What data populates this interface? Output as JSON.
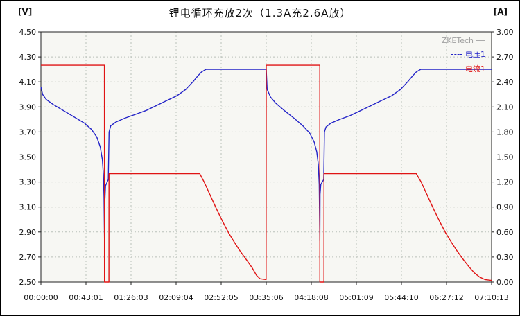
{
  "header": {
    "title": "锂电循环充放2次（1.3A充2.6A放）"
  },
  "axes": {
    "left_unit": "[V]",
    "right_unit": "[A]"
  },
  "watermark": {
    "label": "ZKETech",
    "color": "#a0a0a0"
  },
  "legend": [
    {
      "id": "voltage-1",
      "label": "电压1",
      "color": "#2323c8"
    },
    {
      "id": "current-1",
      "label": "电流1",
      "color": "#e01414"
    }
  ],
  "colors": {
    "grid": "#b9c0b9",
    "plot_bg": "#f7f7f3",
    "frame": "#222222",
    "tick_text": "#111111",
    "voltage": "#2323c8",
    "current": "#e01414"
  },
  "chart_data": {
    "type": "line",
    "title": "锂电循环充放2次（1.3A充2.6A放）",
    "x_tick_labels": [
      "00:00:00",
      "00:43:01",
      "01:26:03",
      "02:09:04",
      "02:52:05",
      "03:35:06",
      "04:18:08",
      "05:01:09",
      "05:44:10",
      "06:27:12",
      "07:10:13"
    ],
    "x_range_seconds": [
      0,
      25813
    ],
    "y_left": {
      "unit": "[V]",
      "min": 2.5,
      "max": 4.5,
      "step": 0.2,
      "decimals": 2
    },
    "y_right": {
      "unit": "[A]",
      "min": 0.0,
      "max": 3.0,
      "step": 0.3,
      "decimals": 2
    },
    "grid": true,
    "legend_position": "top-right-inside",
    "series": [
      {
        "id": "voltage-1",
        "name": "电压1",
        "axis": "left",
        "color": "#2323c8",
        "points": [
          [
            0,
            4.06
          ],
          [
            100,
            4.0
          ],
          [
            300,
            3.96
          ],
          [
            700,
            3.92
          ],
          [
            1300,
            3.87
          ],
          [
            1900,
            3.82
          ],
          [
            2500,
            3.77
          ],
          [
            2900,
            3.72
          ],
          [
            3200,
            3.66
          ],
          [
            3400,
            3.58
          ],
          [
            3520,
            3.48
          ],
          [
            3580,
            3.36
          ],
          [
            3615,
            3.18
          ],
          [
            3645,
            2.8
          ],
          [
            3660,
            3.15
          ],
          [
            3700,
            3.27
          ],
          [
            3860,
            3.32
          ],
          [
            3905,
            3.7
          ],
          [
            4000,
            3.75
          ],
          [
            4300,
            3.78
          ],
          [
            4800,
            3.81
          ],
          [
            5400,
            3.84
          ],
          [
            6000,
            3.87
          ],
          [
            6600,
            3.91
          ],
          [
            7200,
            3.95
          ],
          [
            7800,
            3.99
          ],
          [
            8300,
            4.04
          ],
          [
            8700,
            4.1
          ],
          [
            9000,
            4.15
          ],
          [
            9200,
            4.18
          ],
          [
            9450,
            4.2
          ],
          [
            12906,
            4.2
          ],
          [
            12960,
            4.04
          ],
          [
            13150,
            3.98
          ],
          [
            13450,
            3.93
          ],
          [
            13950,
            3.87
          ],
          [
            14500,
            3.81
          ],
          [
            15000,
            3.75
          ],
          [
            15400,
            3.69
          ],
          [
            15650,
            3.62
          ],
          [
            15800,
            3.54
          ],
          [
            15890,
            3.44
          ],
          [
            15940,
            3.28
          ],
          [
            15975,
            2.83
          ],
          [
            15990,
            3.2
          ],
          [
            16030,
            3.28
          ],
          [
            16200,
            3.32
          ],
          [
            16240,
            3.7
          ],
          [
            16330,
            3.74
          ],
          [
            16600,
            3.77
          ],
          [
            17100,
            3.8
          ],
          [
            17700,
            3.83
          ],
          [
            18300,
            3.87
          ],
          [
            18900,
            3.91
          ],
          [
            19500,
            3.95
          ],
          [
            20100,
            3.99
          ],
          [
            20600,
            4.04
          ],
          [
            21000,
            4.1
          ],
          [
            21300,
            4.15
          ],
          [
            21500,
            4.18
          ],
          [
            21750,
            4.2
          ],
          [
            25813,
            4.2
          ]
        ]
      },
      {
        "id": "current-1",
        "name": "电流1",
        "axis": "right",
        "color": "#e01414",
        "points": [
          [
            0,
            2.6
          ],
          [
            3638,
            2.6
          ],
          [
            3642,
            0.0
          ],
          [
            3895,
            0.0
          ],
          [
            3900,
            1.3
          ],
          [
            9100,
            1.3
          ],
          [
            9350,
            1.2
          ],
          [
            9700,
            1.04
          ],
          [
            10050,
            0.88
          ],
          [
            10400,
            0.73
          ],
          [
            10750,
            0.59
          ],
          [
            11100,
            0.47
          ],
          [
            11450,
            0.36
          ],
          [
            11800,
            0.26
          ],
          [
            12100,
            0.17
          ],
          [
            12350,
            0.08
          ],
          [
            12550,
            0.04
          ],
          [
            12900,
            0.03
          ],
          [
            12908,
            2.6
          ],
          [
            15972,
            2.6
          ],
          [
            15978,
            0.0
          ],
          [
            16210,
            0.0
          ],
          [
            16215,
            1.3
          ],
          [
            21500,
            1.3
          ],
          [
            21780,
            1.2
          ],
          [
            22130,
            1.04
          ],
          [
            22480,
            0.88
          ],
          [
            22830,
            0.73
          ],
          [
            23180,
            0.59
          ],
          [
            23530,
            0.47
          ],
          [
            23880,
            0.36
          ],
          [
            24230,
            0.26
          ],
          [
            24530,
            0.18
          ],
          [
            24830,
            0.11
          ],
          [
            25130,
            0.06
          ],
          [
            25430,
            0.03
          ],
          [
            25813,
            0.02
          ]
        ]
      }
    ]
  }
}
